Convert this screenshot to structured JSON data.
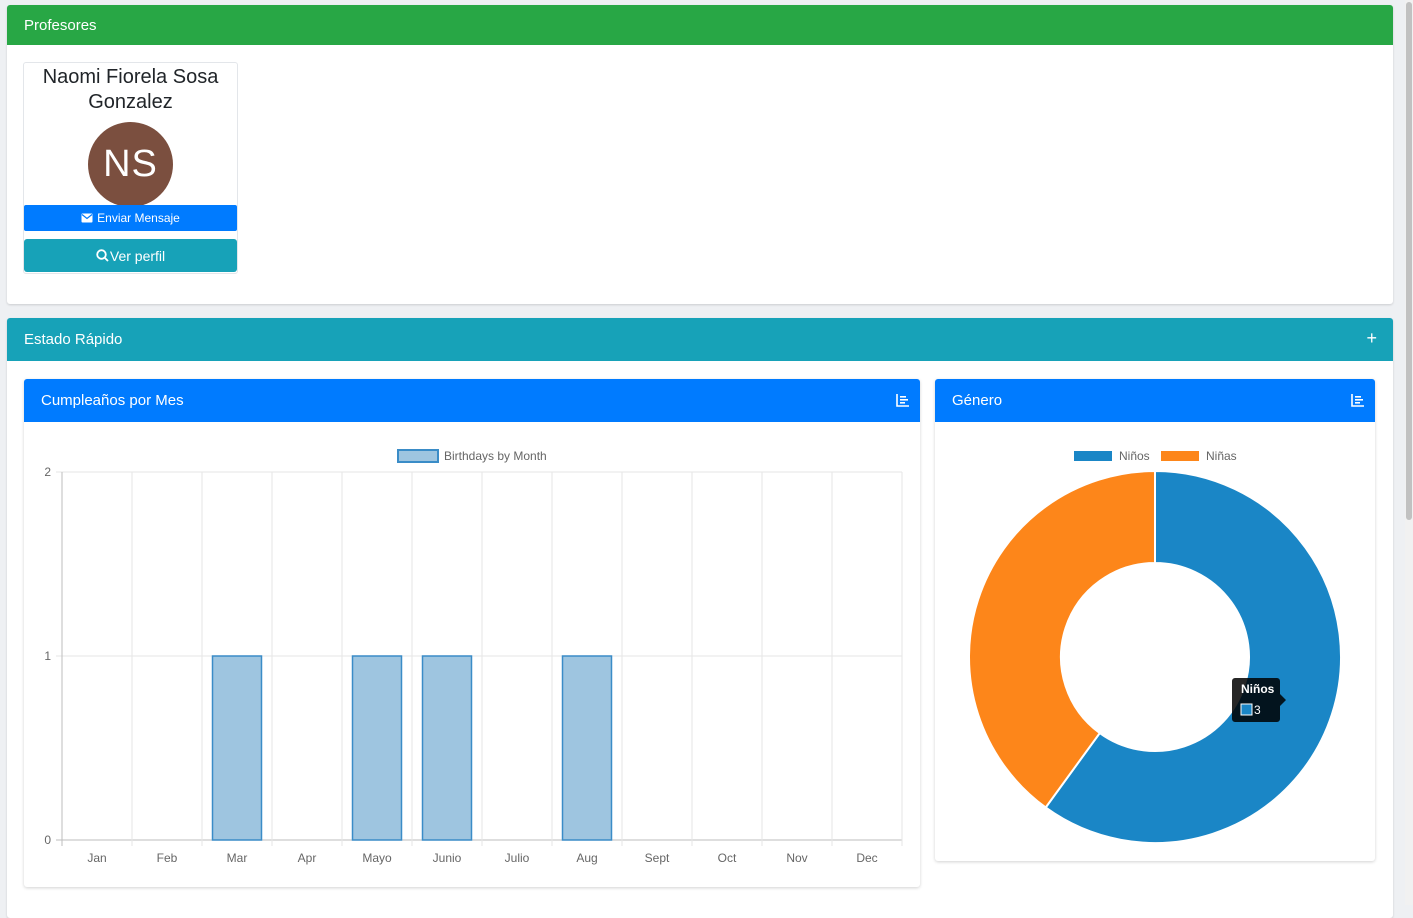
{
  "profesores": {
    "title": "Profesores",
    "teacher": {
      "name": "Naomi Fiorela Sosa Gonzalez",
      "initials": "NS",
      "avatar_color": "#7b4f3f",
      "send_message_label": "Enviar Mensaje",
      "view_profile_label": "Ver perfil"
    }
  },
  "estado": {
    "title": "Estado Rápido",
    "expand_icon": "plus-icon"
  },
  "birthday_card": {
    "title": "Cumpleaños por Mes",
    "icon": "bar-chart-icon"
  },
  "gender_card": {
    "title": "Género",
    "icon": "bar-chart-icon"
  },
  "chart_data": [
    {
      "type": "bar",
      "legend": [
        "Birthdays by Month"
      ],
      "legend_position": "top",
      "categories": [
        "Jan",
        "Feb",
        "Mar",
        "Apr",
        "Mayo",
        "Junio",
        "Julio",
        "Aug",
        "Sept",
        "Oct",
        "Nov",
        "Dec"
      ],
      "series": [
        {
          "name": "Birthdays by Month",
          "values": [
            0,
            0,
            1,
            0,
            1,
            1,
            0,
            1,
            0,
            0,
            0,
            0
          ],
          "color": "#9ec5e0",
          "border": "#3a8cc7"
        }
      ],
      "ylim": [
        0,
        2
      ],
      "yticks": [
        "2",
        "1",
        "0"
      ],
      "grid": true
    },
    {
      "type": "pie",
      "style": "doughnut",
      "legend_position": "top",
      "labels": [
        "Niños",
        "Niñas"
      ],
      "values": [
        3,
        2
      ],
      "colors": [
        "#1a86c6",
        "#fd861a"
      ],
      "tooltip": {
        "label": "Niños",
        "value": "3"
      }
    }
  ]
}
